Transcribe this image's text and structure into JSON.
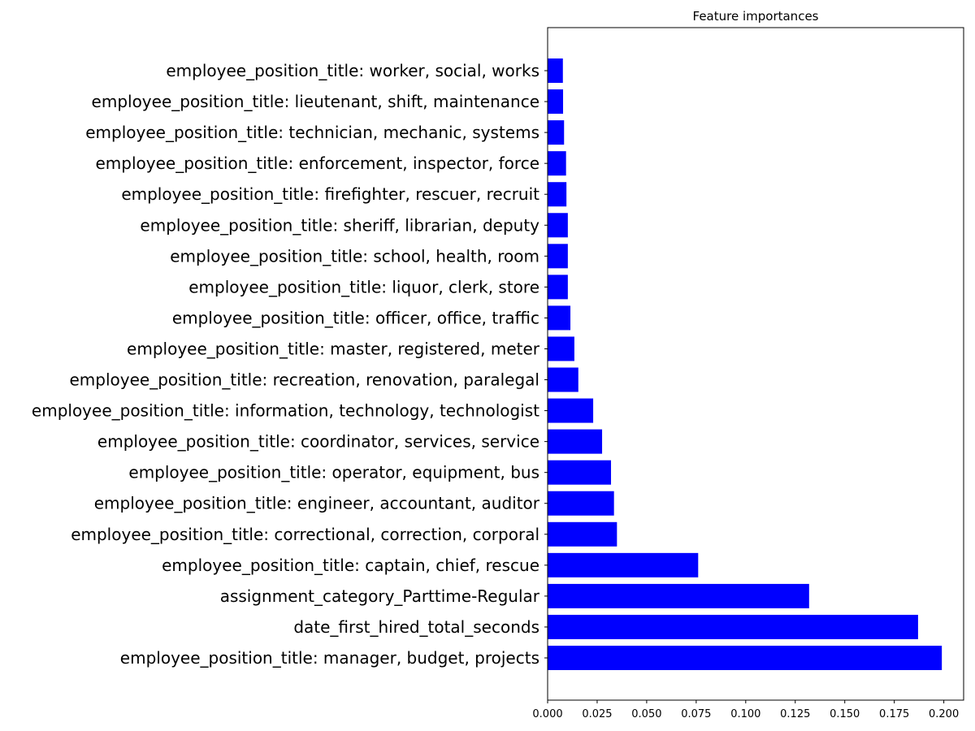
{
  "chart_data": {
    "type": "bar",
    "orientation": "horizontal",
    "title": "Feature importances",
    "xlabel": "",
    "ylabel": "",
    "xlim": [
      0,
      0.21
    ],
    "bar_color": "#0000ff",
    "grid": false,
    "categories": [
      "employee_position_title: manager, budget, projects",
      "date_first_hired_total_seconds",
      "assignment_category_Parttime-Regular",
      "employee_position_title: captain, chief, rescue",
      "employee_position_title: correctional, correction, corporal",
      "employee_position_title: engineer, accountant, auditor",
      "employee_position_title: operator, equipment, bus",
      "employee_position_title: coordinator, services, service",
      "employee_position_title: information, technology, technologist",
      "employee_position_title: recreation, renovation, paralegal",
      "employee_position_title: master, registered, meter",
      "employee_position_title: officer, office, traffic",
      "employee_position_title: liquor, clerk, store",
      "employee_position_title: school, health, room",
      "employee_position_title: sheriff, librarian, deputy",
      "employee_position_title: firefighter, rescuer, recruit",
      "employee_position_title: enforcement, inspector, force",
      "employee_position_title: technician, mechanic, systems",
      "employee_position_title: lieutenant, shift, maintenance",
      "employee_position_title: worker, social, works"
    ],
    "values": [
      0.199,
      0.187,
      0.132,
      0.076,
      0.035,
      0.0335,
      0.032,
      0.0275,
      0.023,
      0.0155,
      0.0135,
      0.0115,
      0.0102,
      0.0102,
      0.0102,
      0.0095,
      0.0093,
      0.0083,
      0.0078,
      0.0077
    ],
    "xticks": [
      0.0,
      0.025,
      0.05,
      0.075,
      0.1,
      0.125,
      0.15,
      0.175,
      0.2
    ],
    "xtick_labels": [
      "0.000",
      "0.025",
      "0.050",
      "0.075",
      "0.100",
      "0.125",
      "0.150",
      "0.175",
      "0.200"
    ]
  }
}
